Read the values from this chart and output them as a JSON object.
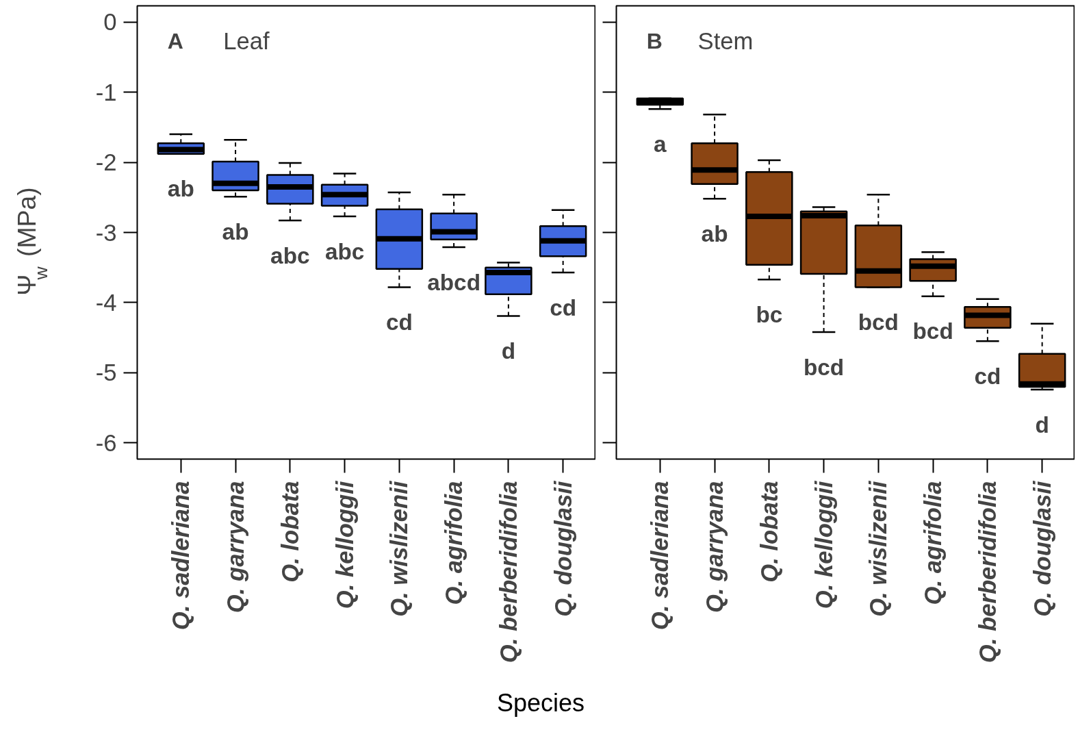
{
  "chart_data": [
    {
      "type": "box",
      "title": "Leaf",
      "ylabel": "Ψ$_{w}$ (MPa)",
      "xlabel": "Species",
      "color": "#4169e1",
      "ylim": [
        -6.23,
        0.23
      ],
      "yticks": [
        0,
        -1,
        -2,
        -3,
        -4,
        -5,
        -6
      ],
      "categories": [
        "Q. sadleriana",
        "Q. garryana",
        "Q. lobata",
        "Q. kelloggii",
        "Q. wislizenii",
        "Q. agrifolia",
        "Q. berberidifolia",
        "Q. douglasii"
      ],
      "boxes": [
        {
          "low": -1.88,
          "q1": -1.88,
          "median": -1.82,
          "q3": -1.73,
          "high": -1.6
        },
        {
          "low": -2.49,
          "q1": -2.4,
          "median": -2.3,
          "q3": -1.99,
          "high": -1.68
        },
        {
          "low": -2.83,
          "q1": -2.59,
          "median": -2.35,
          "q3": -2.18,
          "high": -2.01
        },
        {
          "low": -2.77,
          "q1": -2.62,
          "median": -2.46,
          "q3": -2.32,
          "high": -2.16
        },
        {
          "low": -3.78,
          "q1": -3.52,
          "median": -3.09,
          "q3": -2.67,
          "high": -2.43
        },
        {
          "low": -3.21,
          "q1": -3.1,
          "median": -2.99,
          "q3": -2.73,
          "high": -2.46
        },
        {
          "low": -4.19,
          "q1": -3.88,
          "median": -3.57,
          "q3": -3.5,
          "high": -3.43
        },
        {
          "low": -3.57,
          "q1": -3.34,
          "median": -3.12,
          "q3": -2.91,
          "high": -2.68
        }
      ],
      "annotations": [
        "A",
        "ab",
        "ab",
        "abc",
        "abc",
        "cd",
        "abcd",
        "d",
        "cd"
      ]
    },
    {
      "type": "box",
      "title": "Stem",
      "color": "#8b4513",
      "ylim": [
        -6.23,
        0.23
      ],
      "yticks": [
        0,
        -1,
        -2,
        -3,
        -4,
        -5,
        -6
      ],
      "tick_labels": "x",
      "categories": [
        "Q. sadleriana",
        "Q. garryana",
        "Q. lobata",
        "Q. kelloggii",
        "Q. wislizenii",
        "Q. agrifolia",
        "Q. berberidifolia",
        "Q. douglasii"
      ],
      "boxes": [
        {
          "low": -1.24,
          "q1": -1.18,
          "median": -1.14,
          "q3": -1.09,
          "high": -1.09
        },
        {
          "low": -2.52,
          "q1": -2.31,
          "median": -2.11,
          "q3": -1.73,
          "high": -1.32
        },
        {
          "low": -3.67,
          "q1": -3.46,
          "median": -2.77,
          "q3": -2.14,
          "high": -1.97
        },
        {
          "low": -4.42,
          "q1": -3.59,
          "median": -2.76,
          "q3": -2.7,
          "high": -2.64
        },
        {
          "low": -3.78,
          "q1": -3.78,
          "median": -3.55,
          "q3": -2.9,
          "high": -2.46
        },
        {
          "low": -3.91,
          "q1": -3.69,
          "median": -3.48,
          "q3": -3.38,
          "high": -3.28
        },
        {
          "low": -4.55,
          "q1": -4.36,
          "median": -4.18,
          "q3": -4.06,
          "high": -3.95
        },
        {
          "low": -5.24,
          "q1": -5.2,
          "median": -5.16,
          "q3": -4.73,
          "high": -4.3
        }
      ],
      "annotations": [
        "B",
        "a",
        "ab",
        "bc",
        "bcd",
        "bcd",
        "bcd",
        "cd",
        "d"
      ]
    }
  ]
}
